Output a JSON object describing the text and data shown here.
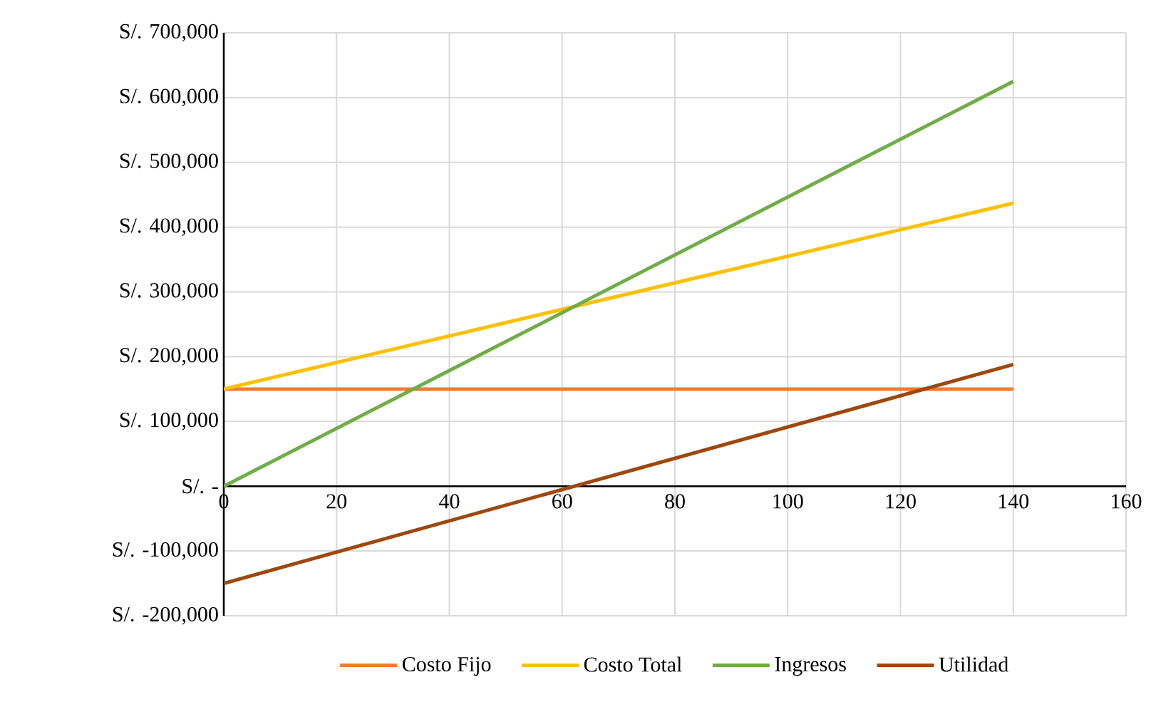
{
  "chart_data": {
    "type": "line",
    "x": [
      0,
      140
    ],
    "series": [
      {
        "name": "Costo Fijo",
        "color": "#ed7d31",
        "values": [
          150000,
          150000
        ]
      },
      {
        "name": "Costo Total",
        "color": "#ffc000",
        "values": [
          150000,
          437000
        ]
      },
      {
        "name": "Ingresos",
        "color": "#70ad47",
        "values": [
          0,
          625000
        ]
      },
      {
        "name": "Utilidad",
        "color": "#9e480e",
        "values": [
          -150000,
          188000
        ]
      }
    ],
    "xlim": [
      0,
      160
    ],
    "xticks": [
      0,
      20,
      40,
      60,
      80,
      100,
      120,
      140,
      160
    ],
    "ylim": [
      -200000,
      700000
    ],
    "yticks": [
      {
        "value": -200000,
        "label": "S/. -200,000"
      },
      {
        "value": -100000,
        "label": "S/. -100,000"
      },
      {
        "value": 0,
        "label": "S/. -"
      },
      {
        "value": 100000,
        "label": "S/. 100,000"
      },
      {
        "value": 200000,
        "label": "S/. 200,000"
      },
      {
        "value": 300000,
        "label": "S/. 300,000"
      },
      {
        "value": 400000,
        "label": "S/. 400,000"
      },
      {
        "value": 500000,
        "label": "S/. 500,000"
      },
      {
        "value": 600000,
        "label": "S/. 600,000"
      },
      {
        "value": 700000,
        "label": "S/. 700,000"
      }
    ],
    "grid": true,
    "legend": "bottom",
    "marker": "none",
    "line_style": "solid"
  }
}
